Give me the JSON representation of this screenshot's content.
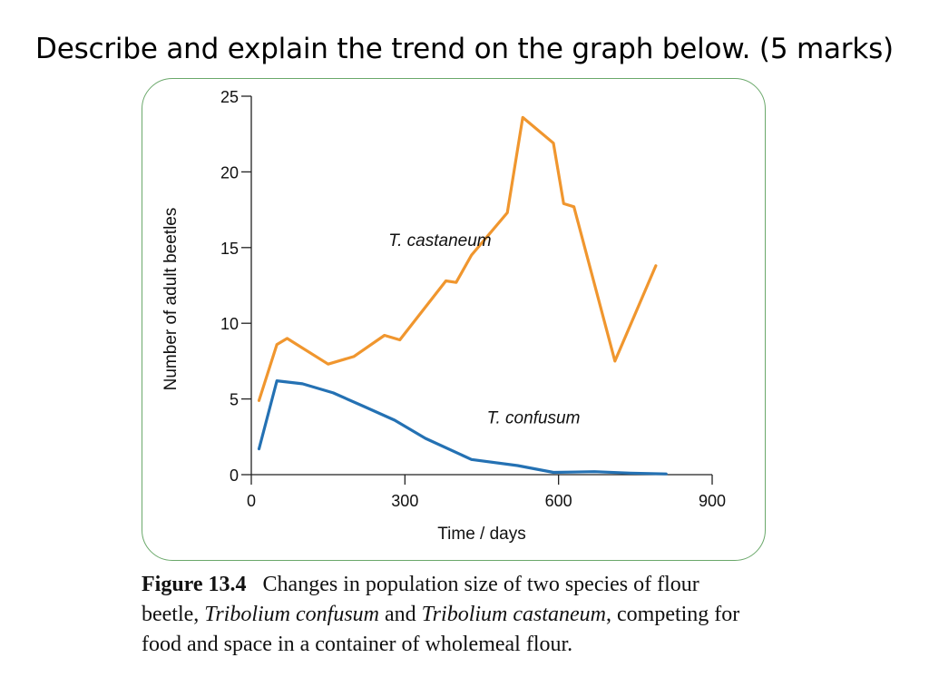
{
  "slide": {
    "question": "Describe and explain the trend on the graph below. (5 marks)"
  },
  "caption": {
    "figure_label": "Figure 13.4",
    "text_1": "Changes in population size of two species of flour beetle, ",
    "species_1": "Tribolium confusum",
    "text_2": " and ",
    "species_2": "Tribolium castaneum",
    "text_3": ", competing for food and space in a container of wholemeal flour."
  },
  "colors": {
    "castaneum": "#f0962e",
    "confusum": "#2471b3",
    "frame_border": "#6aa86a"
  },
  "chart_data": {
    "type": "line",
    "title": "",
    "xlabel": "Time / days",
    "ylabel": "Number of adult beetles",
    "xlim": [
      0,
      900
    ],
    "ylim": [
      0,
      25
    ],
    "x_ticks": [
      0,
      300,
      600,
      900
    ],
    "y_ticks": [
      0,
      5,
      10,
      15,
      20,
      25
    ],
    "grid": false,
    "legend": "inline labels",
    "series": [
      {
        "name": "T. castaneum",
        "color": "#f0962e",
        "points": [
          [
            15,
            4.9
          ],
          [
            50,
            8.6
          ],
          [
            70,
            9.0
          ],
          [
            150,
            7.3
          ],
          [
            200,
            7.8
          ],
          [
            260,
            9.2
          ],
          [
            290,
            8.9
          ],
          [
            380,
            12.8
          ],
          [
            400,
            12.7
          ],
          [
            430,
            14.5
          ],
          [
            500,
            17.3
          ],
          [
            530,
            23.6
          ],
          [
            590,
            21.9
          ],
          [
            610,
            17.9
          ],
          [
            630,
            17.7
          ],
          [
            710,
            7.5
          ],
          [
            790,
            13.8
          ]
        ]
      },
      {
        "name": "T. confusum",
        "color": "#2471b3",
        "points": [
          [
            15,
            1.7
          ],
          [
            50,
            6.2
          ],
          [
            100,
            6.0
          ],
          [
            160,
            5.4
          ],
          [
            220,
            4.5
          ],
          [
            280,
            3.6
          ],
          [
            340,
            2.4
          ],
          [
            430,
            1.0
          ],
          [
            520,
            0.6
          ],
          [
            590,
            0.15
          ],
          [
            670,
            0.2
          ],
          [
            740,
            0.1
          ],
          [
            810,
            0.05
          ]
        ]
      }
    ]
  }
}
